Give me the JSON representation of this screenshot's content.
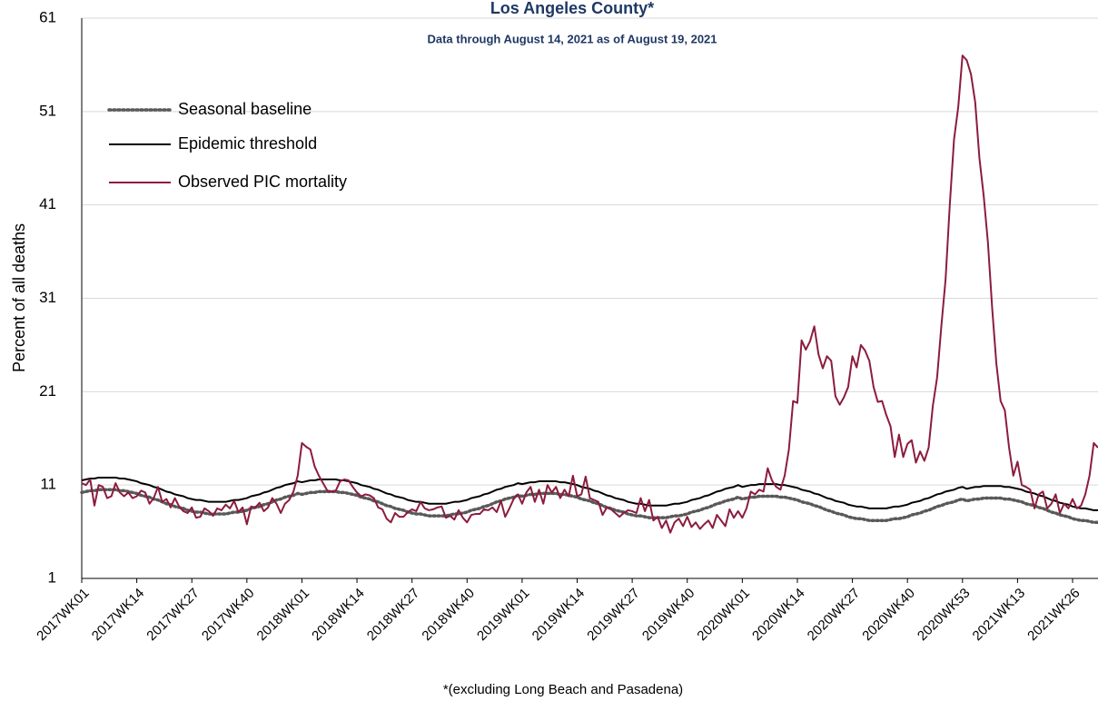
{
  "chart_data": {
    "type": "line",
    "title": "Los Angeles County*",
    "subtitle": "Data through August 14, 2021 as of August 19, 2021",
    "y_label": "Percent of all deaths",
    "footnote": "*(excluding Long Beach and Pasadena)",
    "ylim": [
      1,
      61
    ],
    "yticks": [
      1,
      11,
      21,
      31,
      41,
      51,
      61
    ],
    "grid": true,
    "legend": "upper left",
    "categories": [
      "2017WK01",
      null,
      null,
      null,
      null,
      null,
      null,
      null,
      null,
      null,
      null,
      null,
      null,
      "2017WK14",
      null,
      null,
      null,
      null,
      null,
      null,
      null,
      null,
      null,
      null,
      null,
      null,
      "2017WK27",
      null,
      null,
      null,
      null,
      null,
      null,
      null,
      null,
      null,
      null,
      null,
      null,
      "2017WK40",
      null,
      null,
      null,
      null,
      null,
      null,
      null,
      null,
      null,
      null,
      null,
      null,
      "2018WK01",
      null,
      null,
      null,
      null,
      null,
      null,
      null,
      null,
      null,
      null,
      null,
      null,
      "2018WK14",
      null,
      null,
      null,
      null,
      null,
      null,
      null,
      null,
      null,
      null,
      null,
      null,
      "2018WK27",
      null,
      null,
      null,
      null,
      null,
      null,
      null,
      null,
      null,
      null,
      null,
      null,
      "2018WK40",
      null,
      null,
      null,
      null,
      null,
      null,
      null,
      null,
      null,
      null,
      null,
      null,
      "2019WK01",
      null,
      null,
      null,
      null,
      null,
      null,
      null,
      null,
      null,
      null,
      null,
      null,
      "2019WK14",
      null,
      null,
      null,
      null,
      null,
      null,
      null,
      null,
      null,
      null,
      null,
      null,
      "2019WK27",
      null,
      null,
      null,
      null,
      null,
      null,
      null,
      null,
      null,
      null,
      null,
      null,
      "2019WK40",
      null,
      null,
      null,
      null,
      null,
      null,
      null,
      null,
      null,
      null,
      null,
      null,
      "2020WK01",
      null,
      null,
      null,
      null,
      null,
      null,
      null,
      null,
      null,
      null,
      null,
      null,
      "2020WK14",
      null,
      null,
      null,
      null,
      null,
      null,
      null,
      null,
      null,
      null,
      null,
      null,
      "2020WK27",
      null,
      null,
      null,
      null,
      null,
      null,
      null,
      null,
      null,
      null,
      null,
      null,
      "2020WK40",
      null,
      null,
      null,
      null,
      null,
      null,
      null,
      null,
      null,
      null,
      null,
      null,
      "2020WK53",
      null,
      null,
      null,
      null,
      null,
      null,
      null,
      null,
      null,
      null,
      null,
      null,
      "2021WK13",
      null,
      null,
      null,
      null,
      null,
      null,
      null,
      null,
      null,
      null,
      null,
      null,
      "2021WK26",
      null,
      null,
      null,
      null,
      null,
      null
    ],
    "series": [
      {
        "name": "Seasonal baseline",
        "color": "#595959",
        "dash": "dotted",
        "values": [
          10.2,
          10.3,
          10.4,
          10.4,
          10.5,
          10.5,
          10.5,
          10.5,
          10.5,
          10.4,
          10.4,
          10.3,
          10.2,
          10.1,
          9.9,
          9.8,
          9.7,
          9.5,
          9.4,
          9.2,
          9.0,
          8.9,
          8.7,
          8.6,
          8.5,
          8.3,
          8.2,
          8.1,
          8.1,
          8.0,
          7.9,
          7.9,
          7.9,
          7.9,
          7.9,
          8.0,
          8.1,
          8.1,
          8.2,
          8.3,
          8.5,
          8.6,
          8.7,
          8.9,
          9.0,
          9.2,
          9.4,
          9.5,
          9.7,
          9.8,
          9.9,
          10.1,
          10.0,
          10.1,
          10.2,
          10.2,
          10.3,
          10.3,
          10.3,
          10.3,
          10.3,
          10.2,
          10.2,
          10.1,
          10.0,
          9.9,
          9.7,
          9.6,
          9.5,
          9.3,
          9.2,
          9.0,
          8.8,
          8.7,
          8.5,
          8.4,
          8.3,
          8.1,
          8.0,
          7.9,
          7.9,
          7.8,
          7.7,
          7.7,
          7.7,
          7.7,
          7.7,
          7.8,
          7.9,
          7.9,
          8.0,
          8.1,
          8.3,
          8.4,
          8.5,
          8.7,
          8.8,
          9.0,
          9.2,
          9.3,
          9.5,
          9.6,
          9.7,
          9.9,
          9.8,
          9.9,
          10.0,
          10.0,
          10.1,
          10.1,
          10.1,
          10.1,
          10.1,
          10.0,
          10.0,
          9.9,
          9.8,
          9.7,
          9.5,
          9.4,
          9.3,
          9.1,
          9.0,
          8.8,
          8.6,
          8.5,
          8.3,
          8.2,
          8.1,
          7.9,
          7.8,
          7.7,
          7.7,
          7.6,
          7.5,
          7.5,
          7.5,
          7.5,
          7.5,
          7.6,
          7.7,
          7.7,
          7.8,
          7.9,
          8.1,
          8.2,
          8.3,
          8.5,
          8.6,
          8.8,
          9.0,
          9.1,
          9.3,
          9.4,
          9.5,
          9.7,
          9.5,
          9.6,
          9.7,
          9.7,
          9.8,
          9.8,
          9.8,
          9.8,
          9.8,
          9.7,
          9.7,
          9.6,
          9.5,
          9.4,
          9.2,
          9.1,
          9.0,
          8.8,
          8.7,
          8.5,
          8.3,
          8.2,
          8.0,
          7.9,
          7.8,
          7.6,
          7.5,
          7.4,
          7.4,
          7.3,
          7.2,
          7.2,
          7.2,
          7.2,
          7.2,
          7.3,
          7.4,
          7.4,
          7.5,
          7.6,
          7.8,
          7.9,
          8.0,
          8.2,
          8.3,
          8.5,
          8.7,
          8.8,
          9.0,
          9.1,
          9.2,
          9.4,
          9.5,
          9.3,
          9.4,
          9.5,
          9.5,
          9.6,
          9.6,
          9.6,
          9.6,
          9.6,
          9.5,
          9.5,
          9.4,
          9.3,
          9.2,
          9.0,
          8.9,
          8.8,
          8.6,
          8.5,
          8.3,
          8.1,
          8.0,
          7.8,
          7.7,
          7.6,
          7.4,
          7.3,
          7.2,
          7.2,
          7.1,
          7.0,
          7.0
        ]
      },
      {
        "name": "Epidemic threshold",
        "color": "#000000",
        "dash": "solid",
        "values": [
          11.5,
          11.6,
          11.7,
          11.7,
          11.8,
          11.8,
          11.8,
          11.8,
          11.8,
          11.7,
          11.7,
          11.6,
          11.5,
          11.4,
          11.2,
          11.1,
          11.0,
          10.8,
          10.7,
          10.5,
          10.3,
          10.2,
          10.0,
          9.9,
          9.8,
          9.6,
          9.5,
          9.4,
          9.4,
          9.3,
          9.2,
          9.2,
          9.2,
          9.2,
          9.2,
          9.3,
          9.4,
          9.4,
          9.5,
          9.6,
          9.8,
          9.9,
          10.0,
          10.2,
          10.3,
          10.5,
          10.7,
          10.8,
          11.0,
          11.1,
          11.2,
          11.4,
          11.3,
          11.4,
          11.5,
          11.5,
          11.6,
          11.6,
          11.6,
          11.6,
          11.6,
          11.5,
          11.5,
          11.4,
          11.3,
          11.2,
          11.0,
          10.9,
          10.8,
          10.6,
          10.5,
          10.3,
          10.1,
          10.0,
          9.8,
          9.7,
          9.6,
          9.4,
          9.3,
          9.2,
          9.2,
          9.1,
          9.0,
          9.0,
          9.0,
          9.0,
          9.0,
          9.1,
          9.2,
          9.2,
          9.3,
          9.4,
          9.6,
          9.7,
          9.8,
          10.0,
          10.1,
          10.3,
          10.5,
          10.6,
          10.8,
          10.9,
          11.0,
          11.2,
          11.1,
          11.2,
          11.3,
          11.3,
          11.4,
          11.4,
          11.4,
          11.4,
          11.4,
          11.3,
          11.3,
          11.2,
          11.1,
          11.0,
          10.8,
          10.7,
          10.6,
          10.4,
          10.3,
          10.1,
          9.9,
          9.8,
          9.6,
          9.5,
          9.4,
          9.2,
          9.1,
          9.0,
          9.0,
          8.9,
          8.8,
          8.8,
          8.8,
          8.8,
          8.8,
          8.9,
          9.0,
          9.0,
          9.1,
          9.2,
          9.4,
          9.5,
          9.6,
          9.8,
          9.9,
          10.1,
          10.3,
          10.4,
          10.6,
          10.7,
          10.8,
          11.0,
          10.8,
          10.9,
          11.0,
          11.0,
          11.1,
          11.1,
          11.1,
          11.1,
          11.1,
          11.0,
          11.0,
          10.9,
          10.8,
          10.7,
          10.5,
          10.4,
          10.3,
          10.1,
          10.0,
          9.8,
          9.6,
          9.5,
          9.3,
          9.2,
          9.1,
          8.9,
          8.8,
          8.7,
          8.7,
          8.6,
          8.5,
          8.5,
          8.5,
          8.5,
          8.5,
          8.6,
          8.7,
          8.7,
          8.8,
          8.9,
          9.1,
          9.2,
          9.3,
          9.5,
          9.6,
          9.8,
          10.0,
          10.1,
          10.3,
          10.4,
          10.5,
          10.7,
          10.8,
          10.6,
          10.7,
          10.8,
          10.8,
          10.9,
          10.9,
          10.9,
          10.9,
          10.9,
          10.8,
          10.8,
          10.7,
          10.6,
          10.5,
          10.3,
          10.2,
          10.1,
          9.9,
          9.8,
          9.6,
          9.4,
          9.3,
          9.1,
          9.0,
          8.9,
          8.7,
          8.6,
          8.5,
          8.5,
          8.4,
          8.3,
          8.3
        ]
      },
      {
        "name": "Observed PIC mortality",
        "color": "#8c1c3e",
        "dash": "solid",
        "values": [
          11.2,
          11.0,
          11.6,
          8.8,
          11.0,
          10.8,
          9.6,
          9.8,
          11.2,
          10.2,
          9.8,
          10.2,
          9.6,
          9.8,
          10.4,
          10.2,
          9.0,
          9.6,
          10.8,
          9.2,
          9.5,
          8.6,
          9.6,
          8.7,
          8.2,
          8.0,
          8.6,
          7.5,
          7.6,
          8.5,
          8.2,
          7.7,
          8.5,
          8.3,
          8.9,
          8.5,
          9.3,
          8.1,
          8.6,
          6.8,
          8.7,
          8.6,
          9.1,
          8.2,
          8.6,
          9.6,
          9.0,
          8.0,
          9.0,
          9.4,
          10.3,
          12.0,
          15.5,
          15.1,
          14.8,
          13.0,
          12.0,
          11.2,
          10.4,
          10.3,
          10.4,
          11.4,
          11.6,
          11.5,
          10.8,
          10.2,
          9.8,
          10.0,
          9.9,
          9.6,
          8.6,
          8.4,
          7.4,
          7.0,
          8.0,
          7.6,
          7.6,
          8.1,
          8.4,
          8.2,
          9.2,
          8.5,
          8.3,
          8.4,
          8.6,
          8.7,
          7.5,
          7.7,
          7.3,
          8.3,
          7.5,
          7.0,
          7.8,
          7.9,
          7.9,
          8.4,
          8.3,
          8.6,
          8.1,
          9.3,
          7.6,
          8.5,
          9.5,
          10.0,
          9.0,
          10.2,
          10.8,
          9.2,
          10.5,
          9.0,
          11.0,
          10.2,
          10.8,
          9.6,
          10.5,
          9.8,
          12.0,
          9.8,
          10.0,
          11.9,
          9.6,
          9.4,
          9.2,
          7.8,
          8.6,
          8.4,
          8.0,
          7.6,
          8.0,
          8.3,
          8.2,
          8.0,
          9.6,
          8.2,
          9.4,
          7.2,
          7.6,
          6.4,
          7.2,
          5.9,
          7.0,
          7.4,
          6.6,
          7.6,
          6.5,
          7.0,
          6.3,
          6.8,
          7.2,
          6.4,
          7.8,
          7.2,
          6.6,
          8.4,
          7.5,
          8.2,
          7.5,
          8.5,
          10.3,
          10.0,
          10.5,
          10.3,
          12.8,
          11.5,
          10.8,
          10.5,
          12.0,
          14.8,
          20.0,
          19.8,
          26.5,
          25.5,
          26.4,
          28.0,
          25.0,
          23.5,
          24.8,
          24.3,
          20.5,
          19.6,
          20.4,
          21.5,
          24.8,
          23.6,
          26.0,
          25.4,
          24.3,
          21.5,
          19.9,
          20.0,
          18.5,
          17.3,
          14.0,
          16.4,
          14.0,
          15.4,
          15.8,
          13.4,
          14.6,
          13.6,
          15.0,
          19.5,
          22.5,
          28.0,
          33.0,
          41.0,
          48.0,
          51.5,
          57.0,
          56.5,
          55.0,
          52.0,
          46.0,
          42.0,
          37.0,
          30.0,
          24.0,
          20.0,
          19.0,
          15.0,
          12.0,
          13.5,
          11.0,
          10.8,
          10.5,
          8.5,
          10.0,
          10.3,
          8.5,
          9.0,
          10.0,
          8.0,
          9.0,
          8.5,
          9.5,
          8.5,
          8.8,
          10.0,
          12.0,
          15.5,
          15.0
        ]
      }
    ]
  }
}
